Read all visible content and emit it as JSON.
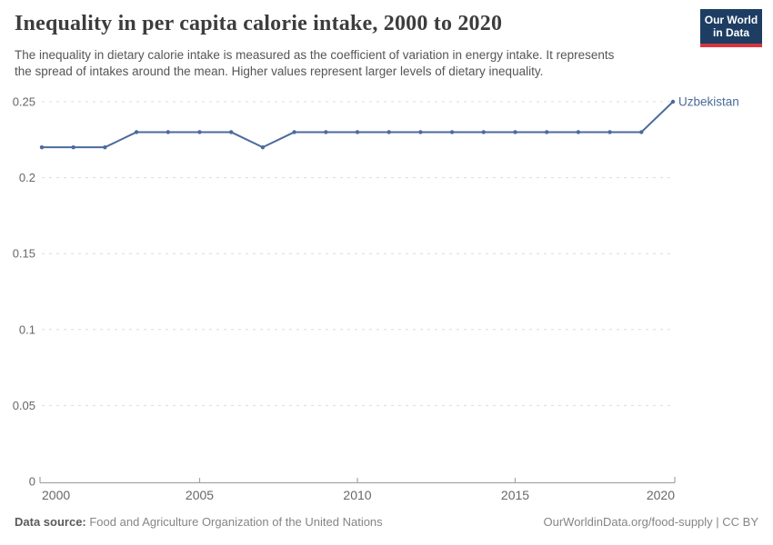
{
  "header": {
    "title": "Inequality in per capita calorie intake, 2000 to 2020",
    "subtitle_line1": "The inequality in dietary calorie intake is measured as the coefficient of variation in energy intake. It represents",
    "subtitle_line2": "the spread of intakes around the mean. Higher values represent larger levels of dietary inequality.",
    "logo": {
      "line1": "Our World",
      "line2": "in Data"
    }
  },
  "chart_data": {
    "type": "line",
    "title": "Inequality in per capita calorie intake, 2000 to 2020",
    "x": [
      2000,
      2001,
      2002,
      2003,
      2004,
      2005,
      2006,
      2007,
      2008,
      2009,
      2010,
      2011,
      2012,
      2013,
      2014,
      2015,
      2016,
      2017,
      2018,
      2019,
      2020
    ],
    "series": [
      {
        "name": "Uzbekistan",
        "values": [
          0.22,
          0.22,
          0.22,
          0.23,
          0.23,
          0.23,
          0.23,
          0.22,
          0.23,
          0.23,
          0.23,
          0.23,
          0.23,
          0.23,
          0.23,
          0.23,
          0.23,
          0.23,
          0.23,
          0.23,
          0.25
        ]
      }
    ],
    "xlim": [
      2000,
      2020
    ],
    "ylim": [
      0,
      0.25
    ],
    "xticks": [
      2000,
      2005,
      2010,
      2015,
      2020
    ],
    "yticks": [
      0,
      0.05,
      0.1,
      0.15,
      0.2,
      0.25
    ],
    "ytick_labels": [
      "0",
      "0.05",
      "0.1",
      "0.15",
      "0.2",
      "0.25"
    ],
    "grid": "dashed horizontal",
    "legend_position": "end-of-line label",
    "xlabel": "",
    "ylabel": ""
  },
  "colors": {
    "line": "#4c6a9c",
    "entity_label": "#4c6a9c",
    "grid": "#dcdcdc",
    "axis": "#a5a5a5",
    "tick_text": "#676767",
    "logo_bg": "#1d3d63",
    "logo_stripe": "#d9353f"
  },
  "footer": {
    "datasource_label": "Data source:",
    "datasource_value": " Food and Agriculture Organization of the United Nations",
    "credit": "OurWorldinData.org/food-supply | CC BY"
  }
}
